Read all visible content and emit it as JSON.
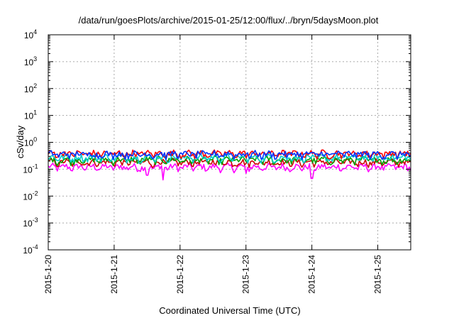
{
  "chart_data": {
    "type": "line",
    "title": "/data/run/goesPlots/archive/2015-01-25/12:00/flux/../bryn/5daysMoon.plot",
    "xlabel": "Coordinated Universal Time (UTC)",
    "ylabel": "cSv/day",
    "x_range": [
      "2015-01-20",
      "2015-01-25T12:00"
    ],
    "x_ticks": [
      "2015-1-20",
      "2015-1-21",
      "2015-1-22",
      "2015-1-23",
      "2015-1-24",
      "2015-1-25"
    ],
    "y_scale": "log",
    "ylim": [
      0.0001,
      10000
    ],
    "y_ticks": [
      {
        "base": "10",
        "exp": "-4"
      },
      {
        "base": "10",
        "exp": "-3"
      },
      {
        "base": "10",
        "exp": "-2"
      },
      {
        "base": "10",
        "exp": "-1"
      },
      {
        "base": "10",
        "exp": "0"
      },
      {
        "base": "10",
        "exp": "1"
      },
      {
        "base": "10",
        "exp": "2"
      },
      {
        "base": "10",
        "exp": "3"
      },
      {
        "base": "10",
        "exp": "4"
      }
    ],
    "grid": true,
    "legend": "none",
    "series": [
      {
        "color": "#ff00ff",
        "level": 0.12,
        "dips": [
          [
            "2015-01-21T12:00",
            0.06
          ],
          [
            "2015-01-21T18:00",
            0.04
          ],
          [
            "2015-01-23T00:00",
            0.07
          ],
          [
            "2015-01-24T00:00",
            0.045
          ]
        ]
      },
      {
        "color": "#cc0000",
        "level": 0.18
      },
      {
        "color": "#00a000",
        "level": 0.22
      },
      {
        "color": "#00cccc",
        "level": 0.27
      },
      {
        "color": "#ff0000",
        "level": 0.38
      },
      {
        "color": "#0033ff",
        "level": 0.36
      }
    ]
  }
}
